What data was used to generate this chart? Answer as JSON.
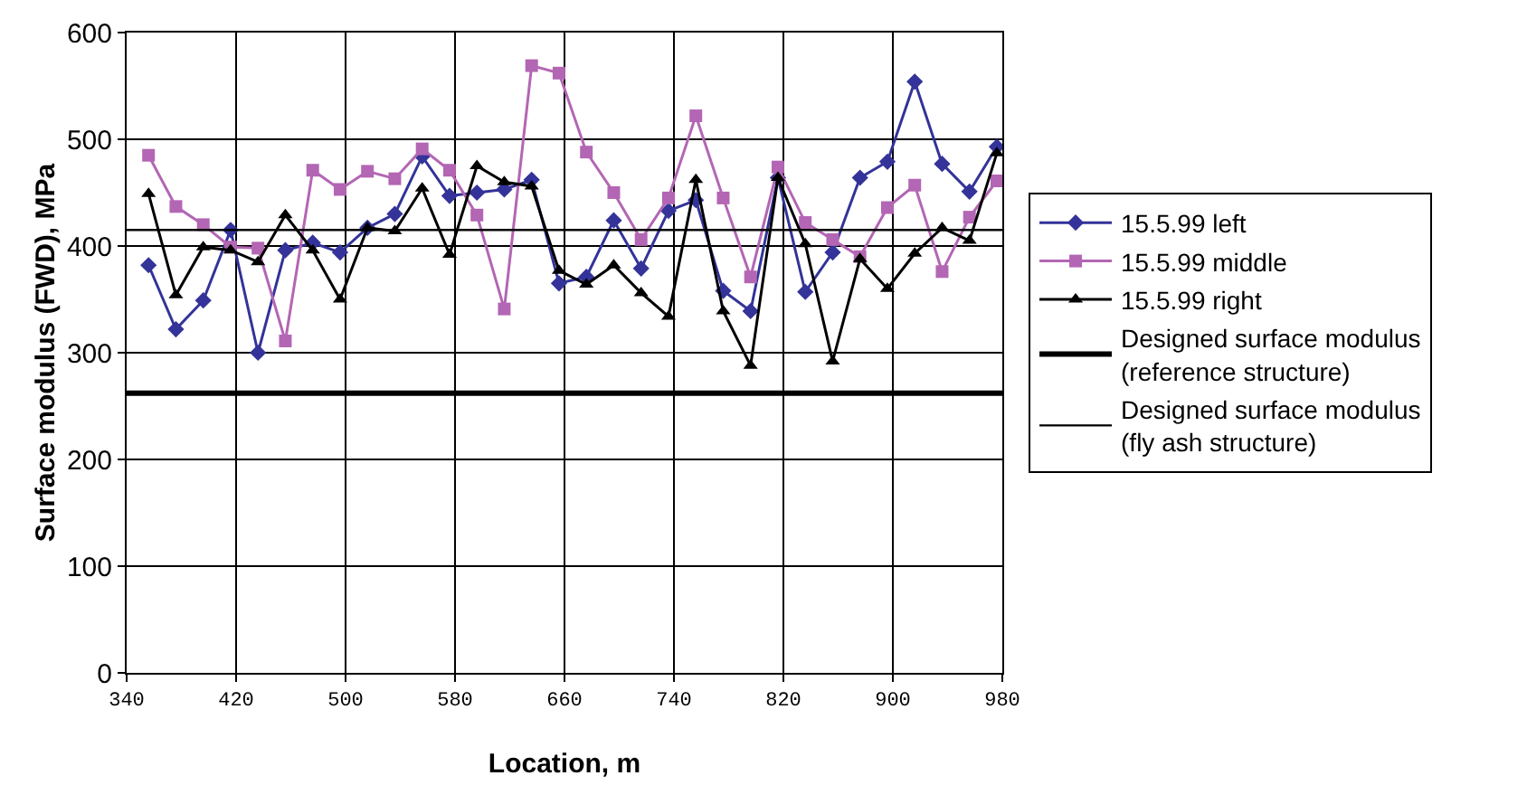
{
  "chart_data": {
    "type": "line",
    "xlabel": "Location, m",
    "ylabel": "Surface modulus (FWD), MPa",
    "x": [
      356,
      376,
      396,
      416,
      436,
      456,
      476,
      496,
      516,
      536,
      556,
      576,
      596,
      616,
      636,
      656,
      676,
      696,
      716,
      736,
      756,
      776,
      796,
      816,
      836,
      856,
      876,
      896,
      916,
      936,
      956,
      976
    ],
    "series": [
      {
        "name": "15.5.99 left",
        "color": "#333399",
        "marker": "diamond",
        "values": [
          382,
          322,
          349,
          415,
          300,
          396,
          403,
          394,
          417,
          430,
          484,
          447,
          450,
          453,
          462,
          365,
          371,
          424,
          379,
          433,
          443,
          358,
          339,
          464,
          357,
          394,
          464,
          479,
          554,
          477,
          451,
          493
        ]
      },
      {
        "name": "15.5.99 middle",
        "color": "#b366b3",
        "marker": "square",
        "values": [
          485,
          437,
          420,
          399,
          398,
          311,
          471,
          453,
          470,
          463,
          491,
          471,
          429,
          341,
          569,
          562,
          488,
          450,
          406,
          445,
          522,
          445,
          371,
          474,
          422,
          406,
          390,
          436,
          457,
          376,
          427,
          461
        ]
      },
      {
        "name": "15.5.99 right",
        "color": "#000000",
        "marker": "triangle",
        "values": [
          449,
          354,
          399,
          396,
          385,
          429,
          396,
          350,
          417,
          414,
          454,
          392,
          475,
          460,
          456,
          377,
          364,
          382,
          356,
          334,
          462,
          339,
          288,
          464,
          402,
          292,
          388,
          360,
          393,
          417,
          405,
          487
        ]
      }
    ],
    "ref_lines": [
      {
        "axis": "y",
        "value": 262,
        "label": "Designed surface modulus\n(reference structure)",
        "color": "#000000"
      },
      {
        "axis": "y",
        "value": 415,
        "label": "Designed surface modulus\n(fly ash structure)",
        "color": "#000000"
      }
    ],
    "xlim": [
      340,
      980
    ],
    "xticks": [
      340,
      420,
      500,
      580,
      660,
      740,
      820,
      900,
      980
    ],
    "ylim": [
      0,
      600
    ],
    "yticks": [
      0,
      100,
      200,
      300,
      400,
      500,
      600
    ],
    "grid": true,
    "legend": "right"
  }
}
